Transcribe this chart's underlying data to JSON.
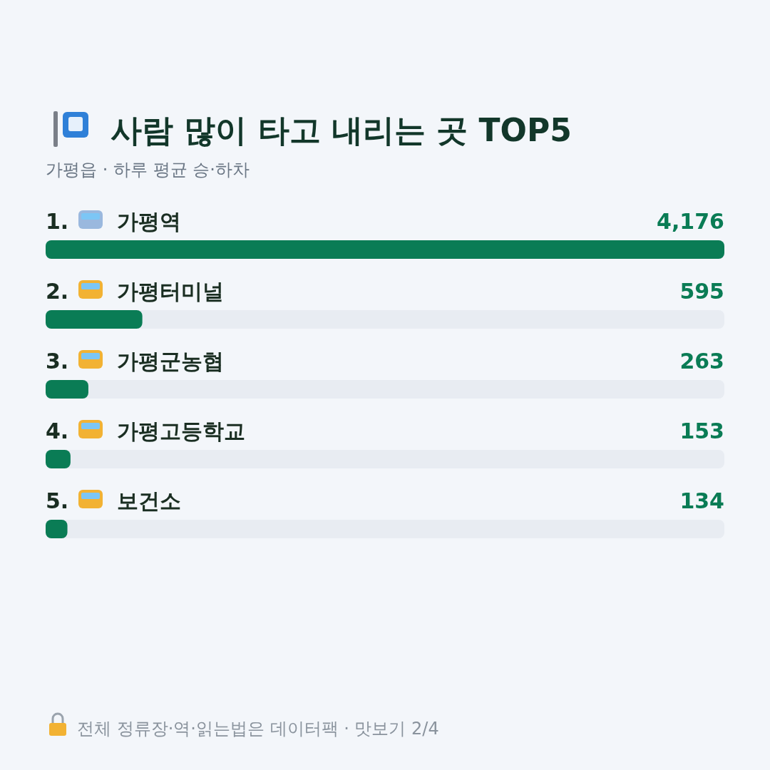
{
  "chart_data": {
    "type": "bar",
    "orientation": "horizontal",
    "title": "사람 많이 타고 내리는 곳 TOP5",
    "subtitle": "가평읍 · 하루 평균 승·하차",
    "categories": [
      "1. 가평역",
      "2. 가평터미널",
      "3. 가평군농협",
      "4. 가평고등학교",
      "5. 보건소"
    ],
    "values": [
      4176,
      595,
      263,
      153,
      134
    ],
    "value_labels": [
      "4,176",
      "595",
      "263",
      "153",
      "134"
    ],
    "color": "#0a7c55",
    "annotations": [
      "전체 정류장·역·읽는법은 데이터팩 · 맛보기 2/4"
    ]
  }
}
